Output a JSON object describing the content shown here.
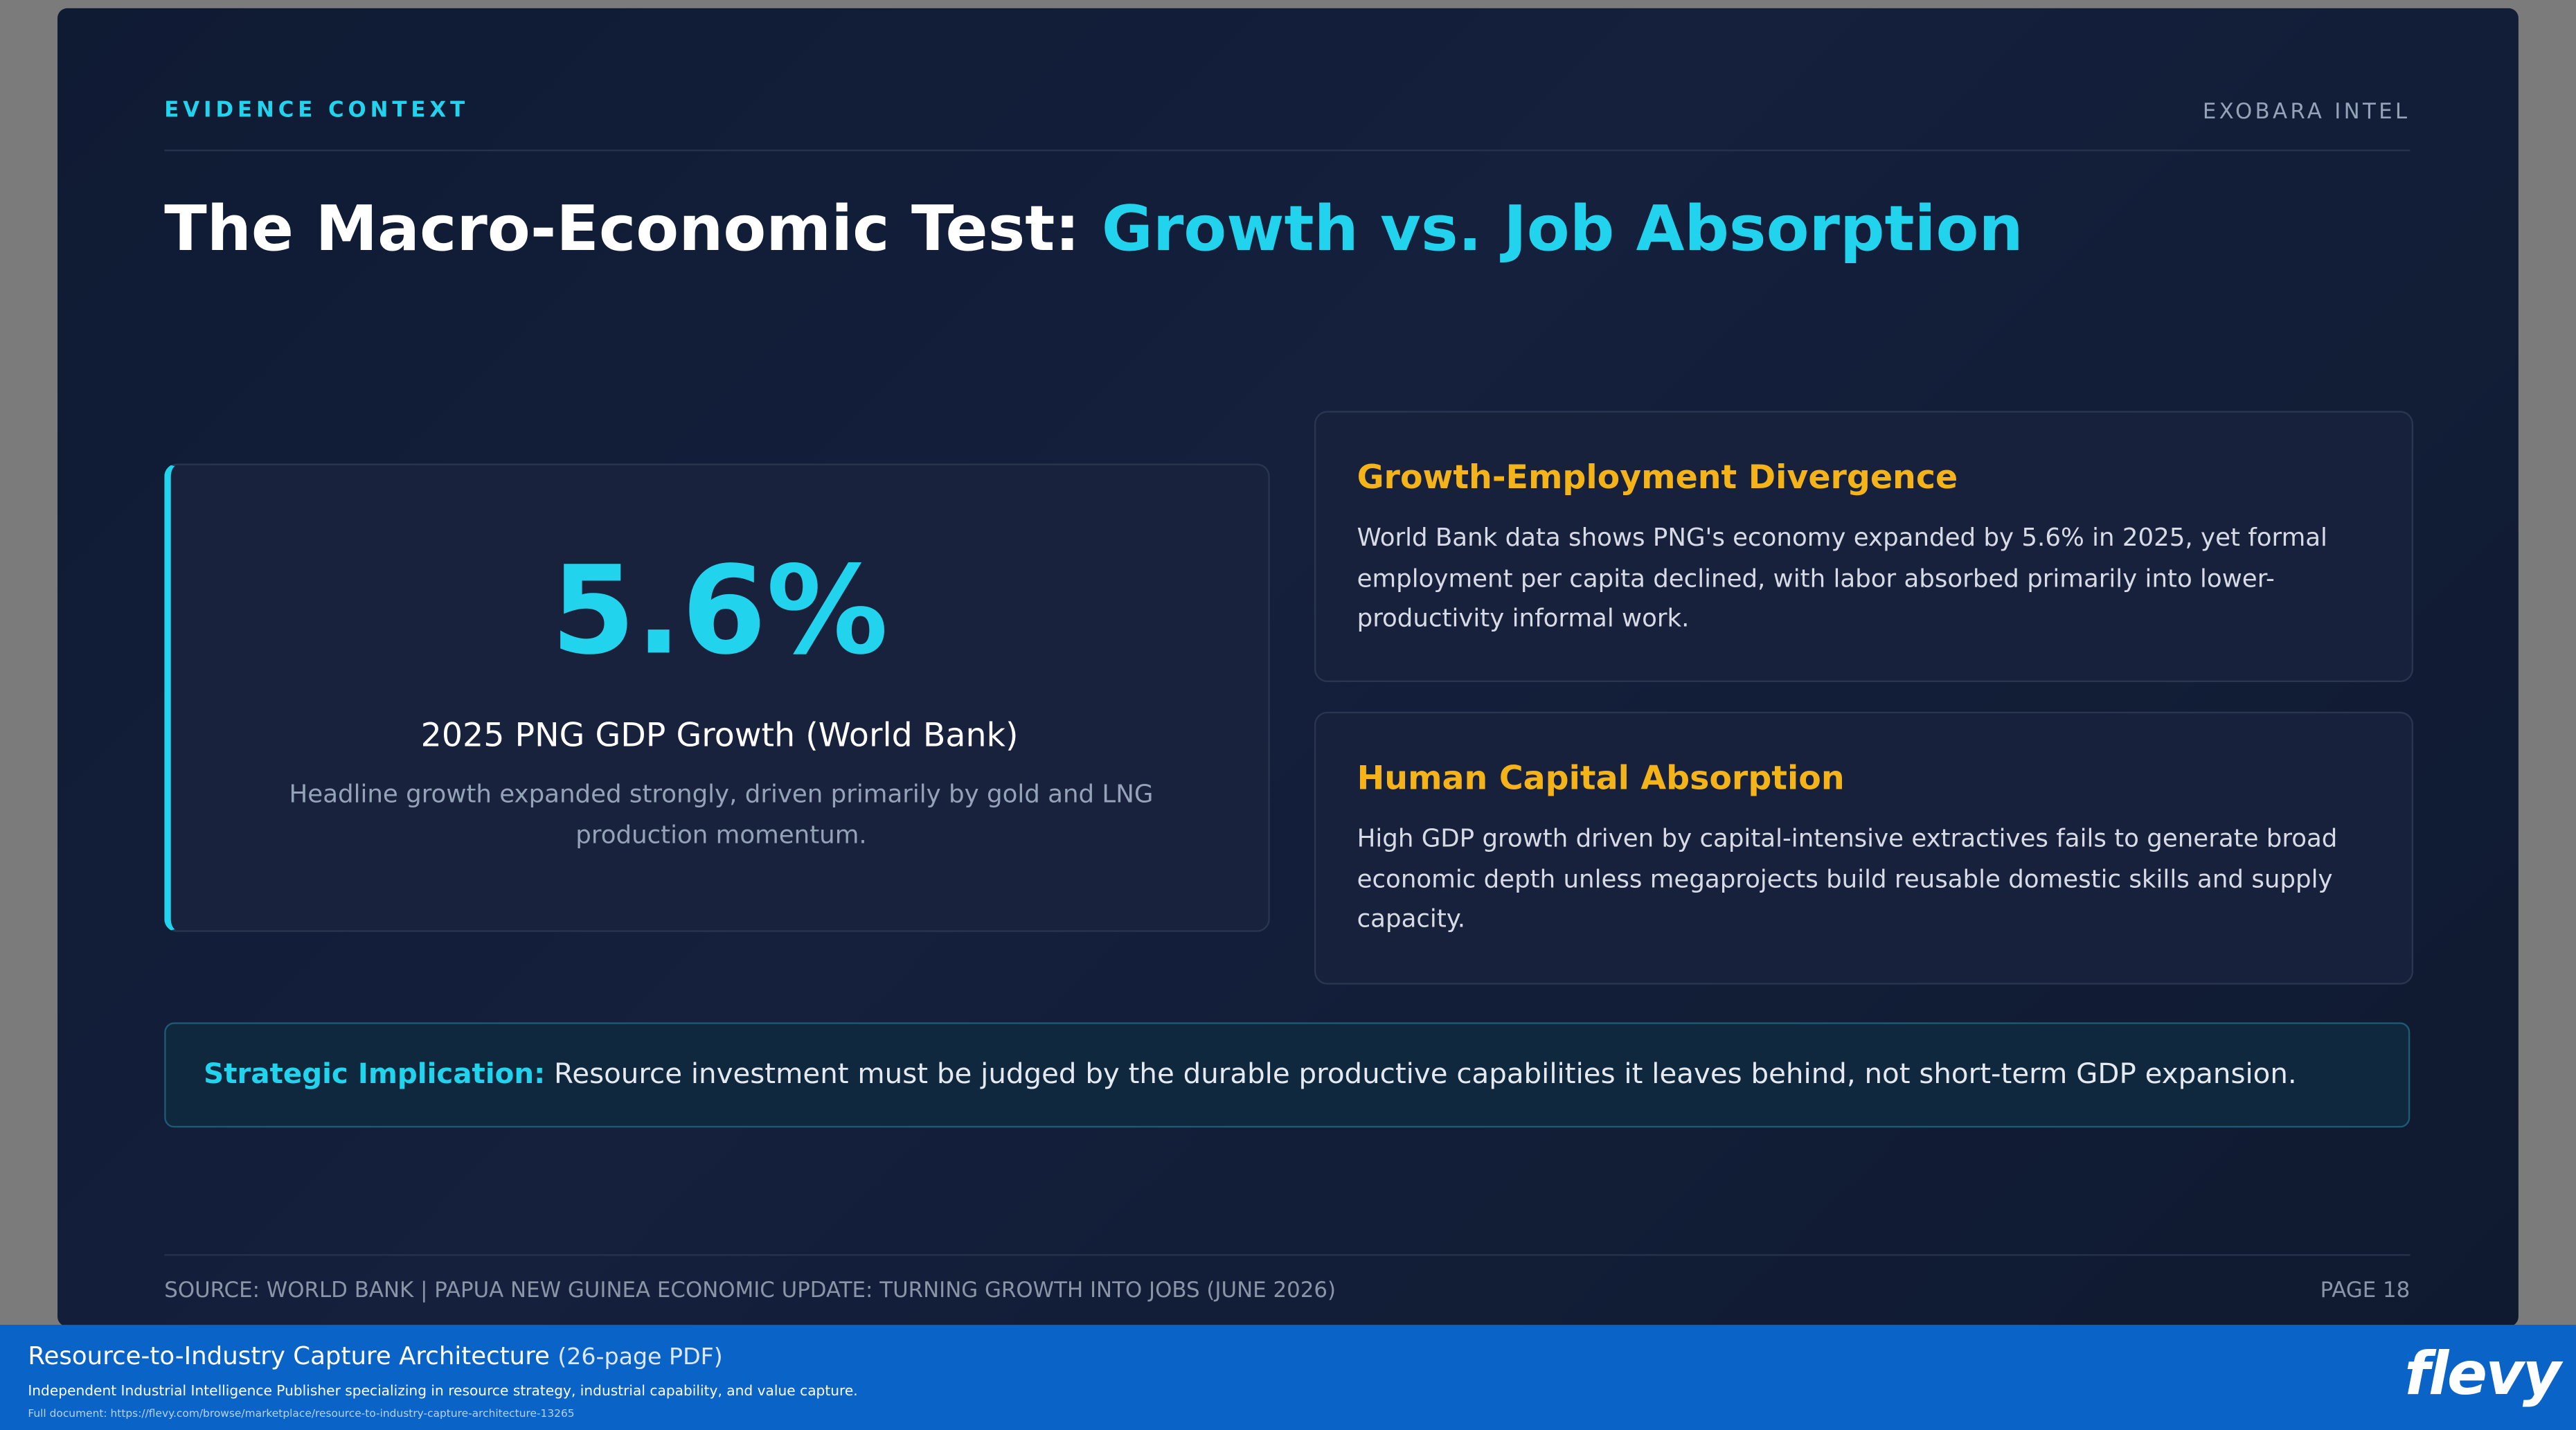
{
  "header": {
    "kicker": "EVIDENCE CONTEXT",
    "brand": "EXOBARA INTEL",
    "title_lead": "The Macro-Economic Test:",
    "title_accent": "Growth vs. Job Absorption"
  },
  "stat": {
    "value": "5.6%",
    "label": "2025 PNG GDP Growth (World Bank)",
    "description": "Headline growth expanded strongly, driven primarily by gold and LNG production momentum."
  },
  "cards": [
    {
      "title": "Growth-Employment Divergence",
      "body": "World Bank data shows PNG's economy expanded by 5.6% in 2025, yet formal employment per capita declined, with labor absorbed primarily into lower-productivity informal work."
    },
    {
      "title": "Human Capital Absorption",
      "body": "High GDP growth driven by capital-intensive extractives fails to generate broad economic depth unless megaprojects build reusable domestic skills and supply capacity."
    }
  ],
  "implication": {
    "label": "Strategic Implication:",
    "text": "Resource investment must be judged by the durable productive capabilities it leaves behind, not short-term GDP expansion."
  },
  "footer": {
    "source": "SOURCE: WORLD BANK | PAPUA NEW GUINEA ECONOMIC UPDATE: TURNING GROWTH INTO JOBS (JUNE 2026)",
    "page": "PAGE 18"
  },
  "banner": {
    "title": "Resource-to-Industry Capture Architecture",
    "pages": "(26-page PDF)",
    "tagline": "Independent Industrial Intelligence Publisher specializing in resource strategy, industrial capability, and value capture.",
    "link": "Full document: https://flevy.com/browse/marketplace/resource-to-industry-capture-architecture-13265",
    "logo": "flevy"
  }
}
